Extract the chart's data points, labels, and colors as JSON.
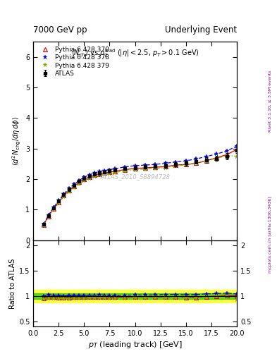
{
  "title_left": "7000 GeV pp",
  "title_right": "Underlying Event",
  "right_label_top": "Rivet 3.1.10, ≥ 3.5M events",
  "right_label_bot": "mcplots.cern.ch [arXiv:1306.3436]",
  "watermark": "ATLAS_2010_S8894728",
  "xlabel": "p_{T} (leading track) [GeV]",
  "ylabel_main": "⟨d²N_{chg}/dηdϕ⟩",
  "ylabel_ratio": "Ratio to ATLAS",
  "xlim": [
    0,
    20
  ],
  "ylim_main": [
    0,
    6.5
  ],
  "ylim_ratio": [
    0.4,
    2.1
  ],
  "main_yticks": [
    0,
    1,
    2,
    3,
    4,
    5,
    6
  ],
  "ratio_yticks": [
    0.5,
    1.0,
    1.5,
    2.0
  ],
  "atlas_x": [
    1.0,
    1.5,
    2.0,
    2.5,
    3.0,
    3.5,
    4.0,
    4.5,
    5.0,
    5.5,
    6.0,
    6.5,
    7.0,
    7.5,
    8.0,
    9.0,
    10.0,
    11.0,
    12.0,
    13.0,
    14.0,
    15.0,
    16.0,
    17.0,
    18.0,
    19.0,
    20.0
  ],
  "atlas_y": [
    0.52,
    0.8,
    1.05,
    1.28,
    1.5,
    1.67,
    1.8,
    1.93,
    2.03,
    2.1,
    2.16,
    2.2,
    2.23,
    2.27,
    2.3,
    2.35,
    2.38,
    2.4,
    2.42,
    2.44,
    2.48,
    2.53,
    2.58,
    2.62,
    2.68,
    2.75,
    2.95
  ],
  "atlas_yerr": [
    0.03,
    0.04,
    0.05,
    0.05,
    0.05,
    0.05,
    0.05,
    0.05,
    0.05,
    0.05,
    0.05,
    0.05,
    0.05,
    0.05,
    0.05,
    0.05,
    0.06,
    0.06,
    0.06,
    0.07,
    0.07,
    0.08,
    0.08,
    0.09,
    0.09,
    0.1,
    0.1
  ],
  "py370_x": [
    1.0,
    1.5,
    2.0,
    2.5,
    3.0,
    3.5,
    4.0,
    4.5,
    5.0,
    5.5,
    6.0,
    6.5,
    7.0,
    7.5,
    8.0,
    9.0,
    10.0,
    11.0,
    12.0,
    13.0,
    14.0,
    15.0,
    16.0,
    17.0,
    18.0,
    19.0,
    20.0
  ],
  "py370_y": [
    0.5,
    0.79,
    1.03,
    1.25,
    1.46,
    1.63,
    1.77,
    1.9,
    2.0,
    2.07,
    2.13,
    2.17,
    2.2,
    2.23,
    2.26,
    2.31,
    2.35,
    2.37,
    2.39,
    2.41,
    2.46,
    2.48,
    2.52,
    2.6,
    2.7,
    2.8,
    2.97
  ],
  "py370_ratio": [
    0.962,
    0.988,
    0.981,
    0.977,
    0.973,
    0.976,
    0.983,
    0.984,
    0.985,
    0.986,
    0.986,
    0.986,
    0.987,
    0.982,
    0.983,
    0.983,
    0.987,
    0.988,
    0.988,
    0.984,
    0.992,
    0.98,
    0.977,
    0.992,
    1.007,
    1.018,
    1.007
  ],
  "py378_x": [
    1.0,
    1.5,
    2.0,
    2.5,
    3.0,
    3.5,
    4.0,
    4.5,
    5.0,
    5.5,
    6.0,
    6.5,
    7.0,
    7.5,
    8.0,
    9.0,
    10.0,
    11.0,
    12.0,
    13.0,
    14.0,
    15.0,
    16.0,
    17.0,
    18.0,
    19.0,
    20.0
  ],
  "py378_y": [
    0.52,
    0.82,
    1.07,
    1.3,
    1.51,
    1.69,
    1.83,
    1.96,
    2.06,
    2.14,
    2.2,
    2.25,
    2.28,
    2.31,
    2.34,
    2.4,
    2.44,
    2.46,
    2.48,
    2.52,
    2.56,
    2.6,
    2.66,
    2.74,
    2.82,
    2.92,
    3.08
  ],
  "py378_ratio": [
    1.0,
    1.025,
    1.019,
    1.016,
    1.007,
    1.012,
    1.017,
    1.016,
    1.015,
    1.019,
    1.019,
    1.023,
    1.022,
    1.018,
    1.017,
    1.021,
    1.025,
    1.025,
    1.025,
    1.033,
    1.032,
    1.028,
    1.031,
    1.046,
    1.052,
    1.062,
    1.044
  ],
  "py379_x": [
    1.0,
    1.5,
    2.0,
    2.5,
    3.0,
    3.5,
    4.0,
    4.5,
    5.0,
    5.5,
    6.0,
    6.5,
    7.0,
    7.5,
    8.0,
    9.0,
    10.0,
    11.0,
    12.0,
    13.0,
    14.0,
    15.0,
    16.0,
    17.0,
    18.0,
    19.0,
    20.0
  ],
  "py379_y": [
    0.49,
    0.77,
    1.01,
    1.22,
    1.43,
    1.59,
    1.73,
    1.85,
    1.95,
    2.03,
    2.09,
    2.13,
    2.16,
    2.19,
    2.22,
    2.27,
    2.31,
    2.33,
    2.35,
    2.38,
    2.43,
    2.47,
    2.52,
    2.6,
    2.68,
    2.77,
    2.75
  ],
  "py379_ratio": [
    0.942,
    0.963,
    0.962,
    0.953,
    0.953,
    0.952,
    0.961,
    0.959,
    0.961,
    0.967,
    0.968,
    0.968,
    0.969,
    0.964,
    0.965,
    0.966,
    0.971,
    0.971,
    0.971,
    0.975,
    0.98,
    0.976,
    0.977,
    0.992,
    1.0,
    1.007,
    0.932
  ],
  "color_atlas": "#000000",
  "color_370": "#cc0000",
  "color_378": "#0000cc",
  "color_379": "#88aa00",
  "band_yellow": "#ffff00",
  "band_green": "#00bb00",
  "bg_color": "#ffffff"
}
